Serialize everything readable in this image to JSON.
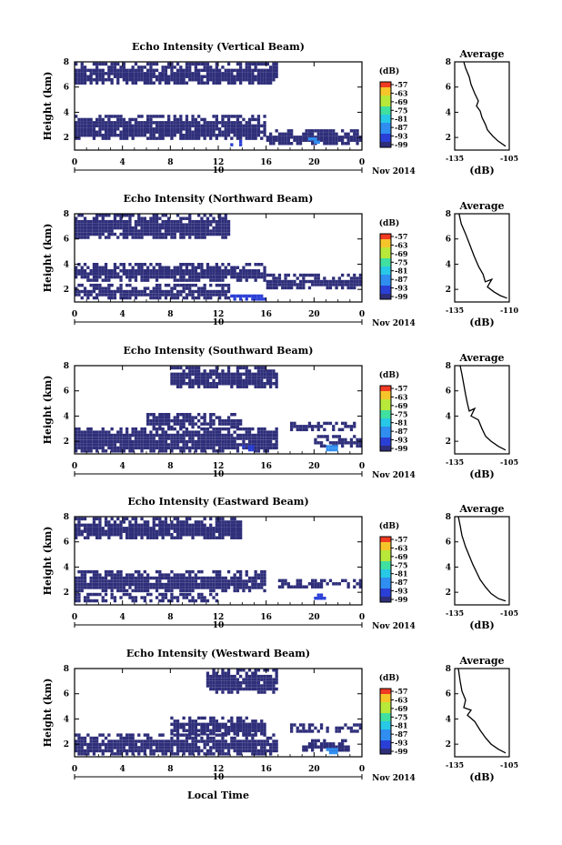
{
  "figure": {
    "xlabel": "Local Time",
    "date_label": "Nov 2014",
    "day_label": "10",
    "colorbar_unit": "(dB)",
    "avg_unit": "(dB)"
  },
  "chart_data": [
    {
      "type": "heatmap",
      "title": "Echo Intensity (Vertical Beam)",
      "ylabel": "Height (km)",
      "x_ticks": [
        "0",
        "4",
        "8",
        "12",
        "16",
        "20",
        "0"
      ],
      "y_ticks": [
        "2",
        "4",
        "6",
        "8"
      ],
      "xlim": [
        0,
        24
      ],
      "ylim": [
        1,
        8
      ],
      "colorbar": {
        "label": "(dB)",
        "ticks": [
          "-57",
          "-63",
          "-69",
          "-75",
          "-81",
          "-87",
          "-93",
          "-99"
        ]
      },
      "layers": [
        {
          "x0": 0,
          "x1": 16,
          "y0": 1.8,
          "y1": 3.6,
          "level": -99
        },
        {
          "x0": 16,
          "x1": 24,
          "y0": 1.4,
          "y1": 2.6,
          "level": -99
        },
        {
          "x0": 0,
          "x1": 17,
          "y0": 6.2,
          "y1": 7.8,
          "level": -99
        },
        {
          "x0": 13,
          "x1": 14,
          "y0": 1.3,
          "y1": 1.6,
          "level": -93
        },
        {
          "x0": 19.5,
          "x1": 20.3,
          "y0": 1.5,
          "y1": 1.9,
          "level": -87
        }
      ],
      "average": {
        "title": "Average",
        "xlabel": "(dB)",
        "xlim": [
          -135,
          -105
        ],
        "x_ticks": [
          "-135",
          "-105"
        ],
        "y_ticks": [
          "2",
          "4",
          "6",
          "8"
        ],
        "profile": [
          [
            -130,
            8
          ],
          [
            -129,
            7.5
          ],
          [
            -127,
            6.8
          ],
          [
            -126,
            6.2
          ],
          [
            -124,
            5.5
          ],
          [
            -122,
            4.9
          ],
          [
            -123,
            4.5
          ],
          [
            -121,
            4.1
          ],
          [
            -120,
            3.6
          ],
          [
            -118,
            3.0
          ],
          [
            -117,
            2.6
          ],
          [
            -114,
            2.1
          ],
          [
            -111,
            1.7
          ],
          [
            -107,
            1.3
          ]
        ]
      }
    },
    {
      "type": "heatmap",
      "title": "Echo Intensity (Northward Beam)",
      "ylabel": "Height (km)",
      "x_ticks": [
        "0",
        "4",
        "8",
        "12",
        "16",
        "20",
        "0"
      ],
      "y_ticks": [
        "2",
        "4",
        "6",
        "8"
      ],
      "xlim": [
        0,
        24
      ],
      "ylim": [
        1,
        8
      ],
      "colorbar": {
        "label": "(dB)",
        "ticks": [
          "-57",
          "-63",
          "-69",
          "-75",
          "-81",
          "-87",
          "-93",
          "-99"
        ]
      },
      "layers": [
        {
          "x0": 0,
          "x1": 16,
          "y0": 2.6,
          "y1": 4.0,
          "level": -99
        },
        {
          "x0": 0,
          "x1": 13,
          "y0": 1.2,
          "y1": 2.4,
          "level": -99
        },
        {
          "x0": 16,
          "x1": 24,
          "y0": 2.0,
          "y1": 3.2,
          "level": -99
        },
        {
          "x0": 0,
          "x1": 13,
          "y0": 6.0,
          "y1": 7.8,
          "level": -99
        },
        {
          "x0": 13,
          "x1": 16,
          "y0": 1.1,
          "y1": 1.4,
          "level": -93
        }
      ],
      "average": {
        "title": "Average",
        "xlabel": "(dB)",
        "xlim": [
          -135,
          -110
        ],
        "x_ticks": [
          "-135",
          "-110"
        ],
        "y_ticks": [
          "2",
          "4",
          "6",
          "8"
        ],
        "profile": [
          [
            -133,
            8
          ],
          [
            -132,
            7.2
          ],
          [
            -130,
            6.4
          ],
          [
            -128,
            5.5
          ],
          [
            -126,
            4.6
          ],
          [
            -124,
            3.8
          ],
          [
            -122,
            3.2
          ],
          [
            -121,
            2.6
          ],
          [
            -118,
            2.8
          ],
          [
            -120,
            2.2
          ],
          [
            -117,
            1.8
          ],
          [
            -114,
            1.5
          ],
          [
            -111,
            1.3
          ]
        ]
      }
    },
    {
      "type": "heatmap",
      "title": "Echo Intensity (Southward Beam)",
      "ylabel": "Height (km)",
      "x_ticks": [
        "0",
        "4",
        "8",
        "12",
        "16",
        "20",
        "0"
      ],
      "y_ticks": [
        "2",
        "4",
        "6",
        "8"
      ],
      "xlim": [
        0,
        24
      ],
      "ylim": [
        1,
        8
      ],
      "colorbar": {
        "label": "(dB)",
        "ticks": [
          "-57",
          "-63",
          "-69",
          "-75",
          "-81",
          "-87",
          "-93",
          "-99"
        ]
      },
      "layers": [
        {
          "x0": 0,
          "x1": 17,
          "y0": 1.1,
          "y1": 3.0,
          "level": -99
        },
        {
          "x0": 6,
          "x1": 14,
          "y0": 3.0,
          "y1": 4.2,
          "level": -99
        },
        {
          "x0": 18,
          "x1": 24,
          "y0": 2.8,
          "y1": 3.4,
          "level": -99
        },
        {
          "x0": 20,
          "x1": 24,
          "y0": 1.5,
          "y1": 2.3,
          "level": -99
        },
        {
          "x0": 8,
          "x1": 17,
          "y0": 6.2,
          "y1": 7.8,
          "level": -99
        },
        {
          "x0": 14,
          "x1": 15,
          "y0": 1.2,
          "y1": 1.5,
          "level": -93
        },
        {
          "x0": 21,
          "x1": 22,
          "y0": 1.2,
          "y1": 1.5,
          "level": -87
        }
      ],
      "average": {
        "title": "Average",
        "xlabel": "(dB)",
        "xlim": [
          -135,
          -105
        ],
        "x_ticks": [
          "-135",
          "-105"
        ],
        "y_ticks": [
          "2",
          "4",
          "6",
          "8"
        ],
        "profile": [
          [
            -132,
            8
          ],
          [
            -131,
            7.3
          ],
          [
            -130,
            6.5
          ],
          [
            -129,
            5.7
          ],
          [
            -128,
            5.0
          ],
          [
            -127,
            4.4
          ],
          [
            -124,
            4.6
          ],
          [
            -126,
            4.0
          ],
          [
            -122,
            3.7
          ],
          [
            -120,
            3.0
          ],
          [
            -118,
            2.4
          ],
          [
            -115,
            2.0
          ],
          [
            -111,
            1.6
          ],
          [
            -107,
            1.3
          ]
        ]
      }
    },
    {
      "type": "heatmap",
      "title": "Echo Intensity (Eastward Beam)",
      "ylabel": "Height (km)",
      "x_ticks": [
        "0",
        "4",
        "8",
        "12",
        "16",
        "20",
        "0"
      ],
      "y_ticks": [
        "2",
        "4",
        "6",
        "8"
      ],
      "xlim": [
        0,
        24
      ],
      "ylim": [
        1,
        8
      ],
      "colorbar": {
        "label": "(dB)",
        "ticks": [
          "-57",
          "-63",
          "-69",
          "-75",
          "-81",
          "-87",
          "-93",
          "-99"
        ]
      },
      "layers": [
        {
          "x0": 0,
          "x1": 16,
          "y0": 2.0,
          "y1": 3.6,
          "level": -99
        },
        {
          "x0": 17,
          "x1": 24,
          "y0": 2.3,
          "y1": 3.0,
          "level": -99
        },
        {
          "x0": 0,
          "x1": 12,
          "y0": 1.2,
          "y1": 1.9,
          "level": -99
        },
        {
          "x0": 0,
          "x1": 14,
          "y0": 6.2,
          "y1": 7.8,
          "level": -99
        },
        {
          "x0": 20,
          "x1": 21,
          "y0": 1.4,
          "y1": 1.7,
          "level": -93
        }
      ],
      "average": {
        "title": "Average",
        "xlabel": "(dB)",
        "xlim": [
          -135,
          -105
        ],
        "x_ticks": [
          "-135",
          "-105"
        ],
        "y_ticks": [
          "2",
          "4",
          "6",
          "8"
        ],
        "profile": [
          [
            -133,
            8
          ],
          [
            -132,
            7.3
          ],
          [
            -131,
            6.5
          ],
          [
            -129,
            5.6
          ],
          [
            -127,
            4.9
          ],
          [
            -125,
            4.2
          ],
          [
            -123,
            3.6
          ],
          [
            -121,
            3.0
          ],
          [
            -118,
            2.4
          ],
          [
            -115,
            1.9
          ],
          [
            -111,
            1.5
          ],
          [
            -107,
            1.3
          ]
        ]
      }
    },
    {
      "type": "heatmap",
      "title": "Echo Intensity (Westward Beam)",
      "ylabel": "Height (km)",
      "x_ticks": [
        "0",
        "4",
        "8",
        "12",
        "16",
        "20",
        "0"
      ],
      "y_ticks": [
        "2",
        "4",
        "6",
        "8"
      ],
      "xlim": [
        0,
        24
      ],
      "ylim": [
        1,
        8
      ],
      "colorbar": {
        "label": "(dB)",
        "ticks": [
          "-57",
          "-63",
          "-69",
          "-75",
          "-81",
          "-87",
          "-93",
          "-99"
        ]
      },
      "layers": [
        {
          "x0": 0,
          "x1": 17,
          "y0": 1.1,
          "y1": 2.7,
          "level": -99
        },
        {
          "x0": 8,
          "x1": 16,
          "y0": 2.7,
          "y1": 4.0,
          "level": -99
        },
        {
          "x0": 18,
          "x1": 24,
          "y0": 2.9,
          "y1": 3.5,
          "level": -99
        },
        {
          "x0": 19,
          "x1": 23,
          "y0": 1.4,
          "y1": 2.2,
          "level": -99
        },
        {
          "x0": 11,
          "x1": 17,
          "y0": 6.0,
          "y1": 7.8,
          "level": -99
        },
        {
          "x0": 21,
          "x1": 22,
          "y0": 1.2,
          "y1": 1.5,
          "level": -87
        }
      ],
      "average": {
        "title": "Average",
        "xlabel": "(dB)",
        "xlim": [
          -135,
          -105
        ],
        "x_ticks": [
          "-135",
          "-105"
        ],
        "y_ticks": [
          "2",
          "4",
          "6",
          "8"
        ],
        "profile": [
          [
            -133,
            8
          ],
          [
            -132,
            7.0
          ],
          [
            -131,
            6.2
          ],
          [
            -129,
            5.5
          ],
          [
            -130,
            4.9
          ],
          [
            -126,
            4.7
          ],
          [
            -128,
            4.3
          ],
          [
            -124,
            3.8
          ],
          [
            -121,
            3.1
          ],
          [
            -118,
            2.5
          ],
          [
            -115,
            2.0
          ],
          [
            -111,
            1.6
          ],
          [
            -107,
            1.3
          ]
        ]
      }
    }
  ]
}
